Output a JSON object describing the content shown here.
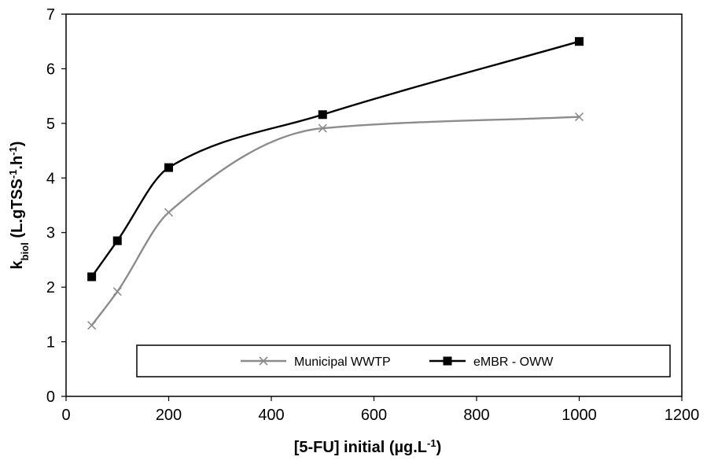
{
  "chart_data": {
    "type": "line",
    "xlabel": {
      "main": "[5-FU] initial (µg.L",
      "sup": "-1",
      "end": ")"
    },
    "ylabel": {
      "k": "k",
      "sub": "biol",
      "open": " (L.gTSS",
      "sup1": "-1",
      "mid": ".h",
      "sup2": "-1",
      "end": ")"
    },
    "xlim": [
      0,
      1200
    ],
    "ylim": [
      0,
      7
    ],
    "x_ticks": [
      "0",
      "200",
      "400",
      "600",
      "800",
      "1000",
      "1200"
    ],
    "y_ticks": [
      "0",
      "1",
      "2",
      "3",
      "4",
      "5",
      "6",
      "7"
    ],
    "grid": false,
    "legend_position": "bottom-inside",
    "series": [
      {
        "name": "Municipal WWTP",
        "color": "#8c8c8c",
        "marker": "x",
        "smooth": true,
        "x": [
          50,
          100,
          200,
          500,
          1000
        ],
        "y": [
          1.3,
          1.92,
          3.37,
          4.91,
          5.12
        ]
      },
      {
        "name": "eMBR - OWW",
        "color": "#000000",
        "marker": "square",
        "smooth": true,
        "x": [
          50,
          100,
          200,
          500,
          1000
        ],
        "y": [
          2.19,
          2.85,
          4.19,
          5.16,
          6.5
        ]
      }
    ]
  }
}
